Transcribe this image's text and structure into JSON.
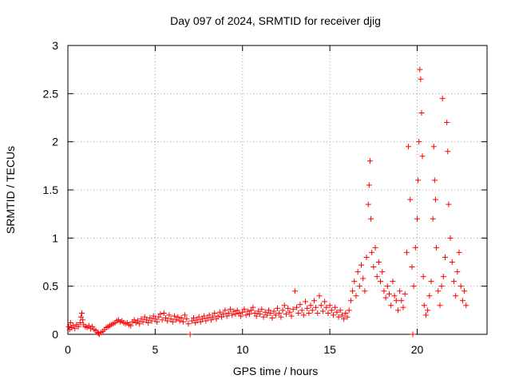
{
  "chart_data": {
    "type": "scatter",
    "title": "Day 097 of 2024, SRMTID for receiver djig",
    "xlabel": "GPS time / hours",
    "ylabel": "SRMTID / TECUs",
    "xlim": [
      0,
      24
    ],
    "ylim": [
      0,
      3
    ],
    "x_ticks": [
      0,
      5,
      10,
      15,
      20
    ],
    "y_ticks": [
      0,
      0.5,
      1,
      1.5,
      2,
      2.5,
      3
    ],
    "x_tick_labels": [
      "0",
      "5",
      "10",
      "15",
      "20"
    ],
    "y_tick_labels": [
      "0",
      "0.5",
      "1",
      "1.5",
      "2",
      "2.5",
      "3"
    ],
    "grid": true,
    "marker": "+",
    "color": "#ff0000",
    "series": [
      {
        "name": "SRMTID",
        "points": [
          [
            0.05,
            0.08
          ],
          [
            0.1,
            0.05
          ],
          [
            0.15,
            0.12
          ],
          [
            0.2,
            0.07
          ],
          [
            0.3,
            0.09
          ],
          [
            0.4,
            0.06
          ],
          [
            0.5,
            0.1
          ],
          [
            0.6,
            0.08
          ],
          [
            0.7,
            0.12
          ],
          [
            0.75,
            0.18
          ],
          [
            0.8,
            0.22
          ],
          [
            0.85,
            0.15
          ],
          [
            0.9,
            0.1
          ],
          [
            1.0,
            0.08
          ],
          [
            1.1,
            0.07
          ],
          [
            1.2,
            0.09
          ],
          [
            1.3,
            0.06
          ],
          [
            1.4,
            0.08
          ],
          [
            1.5,
            0.05
          ],
          [
            1.6,
            0.04
          ],
          [
            1.7,
            0.02
          ],
          [
            1.75,
            0.01
          ],
          [
            1.8,
            0.0
          ],
          [
            1.9,
            0.02
          ],
          [
            2.0,
            0.03
          ],
          [
            2.1,
            0.05
          ],
          [
            2.2,
            0.07
          ],
          [
            2.3,
            0.08
          ],
          [
            2.4,
            0.09
          ],
          [
            2.5,
            0.1
          ],
          [
            2.6,
            0.11
          ],
          [
            2.7,
            0.12
          ],
          [
            2.8,
            0.14
          ],
          [
            2.9,
            0.15
          ],
          [
            3.0,
            0.13
          ],
          [
            3.1,
            0.14
          ],
          [
            3.2,
            0.12
          ],
          [
            3.3,
            0.11
          ],
          [
            3.4,
            0.12
          ],
          [
            3.5,
            0.1
          ],
          [
            3.6,
            0.09
          ],
          [
            3.7,
            0.13
          ],
          [
            3.8,
            0.15
          ],
          [
            3.9,
            0.12
          ],
          [
            4.0,
            0.14
          ],
          [
            4.1,
            0.11
          ],
          [
            4.2,
            0.16
          ],
          [
            4.3,
            0.13
          ],
          [
            4.4,
            0.18
          ],
          [
            4.5,
            0.15
          ],
          [
            4.6,
            0.12
          ],
          [
            4.7,
            0.17
          ],
          [
            4.8,
            0.14
          ],
          [
            4.9,
            0.19
          ],
          [
            5.0,
            0.16
          ],
          [
            5.1,
            0.13
          ],
          [
            5.2,
            0.18
          ],
          [
            5.3,
            0.21
          ],
          [
            5.4,
            0.15
          ],
          [
            5.5,
            0.22
          ],
          [
            5.6,
            0.17
          ],
          [
            5.7,
            0.14
          ],
          [
            5.8,
            0.2
          ],
          [
            5.9,
            0.16
          ],
          [
            6.0,
            0.13
          ],
          [
            6.1,
            0.19
          ],
          [
            6.2,
            0.15
          ],
          [
            6.3,
            0.18
          ],
          [
            6.4,
            0.14
          ],
          [
            6.5,
            0.17
          ],
          [
            6.6,
            0.13
          ],
          [
            6.7,
            0.2
          ],
          [
            6.8,
            0.16
          ],
          [
            6.9,
            0.11
          ],
          [
            7.0,
            0.0
          ],
          [
            7.1,
            0.14
          ],
          [
            7.2,
            0.17
          ],
          [
            7.3,
            0.12
          ],
          [
            7.4,
            0.15
          ],
          [
            7.5,
            0.18
          ],
          [
            7.6,
            0.13
          ],
          [
            7.7,
            0.16
          ],
          [
            7.8,
            0.19
          ],
          [
            7.9,
            0.14
          ],
          [
            8.0,
            0.17
          ],
          [
            8.1,
            0.2
          ],
          [
            8.2,
            0.15
          ],
          [
            8.3,
            0.18
          ],
          [
            8.4,
            0.22
          ],
          [
            8.5,
            0.16
          ],
          [
            8.6,
            0.19
          ],
          [
            8.7,
            0.23
          ],
          [
            8.8,
            0.18
          ],
          [
            8.9,
            0.21
          ],
          [
            9.0,
            0.25
          ],
          [
            9.1,
            0.19
          ],
          [
            9.2,
            0.22
          ],
          [
            9.3,
            0.26
          ],
          [
            9.4,
            0.2
          ],
          [
            9.5,
            0.24
          ],
          [
            9.6,
            0.21
          ],
          [
            9.7,
            0.25
          ],
          [
            9.8,
            0.22
          ],
          [
            9.9,
            0.19
          ],
          [
            10.0,
            0.23
          ],
          [
            10.1,
            0.26
          ],
          [
            10.2,
            0.2
          ],
          [
            10.3,
            0.24
          ],
          [
            10.4,
            0.21
          ],
          [
            10.5,
            0.25
          ],
          [
            10.6,
            0.28
          ],
          [
            10.7,
            0.22
          ],
          [
            10.8,
            0.19
          ],
          [
            10.9,
            0.24
          ],
          [
            11.0,
            0.21
          ],
          [
            11.1,
            0.26
          ],
          [
            11.2,
            0.18
          ],
          [
            11.3,
            0.23
          ],
          [
            11.4,
            0.2
          ],
          [
            11.5,
            0.25
          ],
          [
            11.6,
            0.22
          ],
          [
            11.7,
            0.17
          ],
          [
            11.8,
            0.24
          ],
          [
            11.9,
            0.2
          ],
          [
            12.0,
            0.27
          ],
          [
            12.1,
            0.22
          ],
          [
            12.2,
            0.18
          ],
          [
            12.3,
            0.25
          ],
          [
            12.4,
            0.3
          ],
          [
            12.5,
            0.21
          ],
          [
            12.6,
            0.27
          ],
          [
            12.7,
            0.23
          ],
          [
            12.8,
            0.19
          ],
          [
            12.9,
            0.26
          ],
          [
            13.0,
            0.45
          ],
          [
            13.1,
            0.28
          ],
          [
            13.2,
            0.22
          ],
          [
            13.3,
            0.31
          ],
          [
            13.4,
            0.25
          ],
          [
            13.5,
            0.2
          ],
          [
            13.6,
            0.34
          ],
          [
            13.7,
            0.27
          ],
          [
            13.8,
            0.22
          ],
          [
            13.9,
            0.3
          ],
          [
            14.0,
            0.25
          ],
          [
            14.1,
            0.35
          ],
          [
            14.2,
            0.28
          ],
          [
            14.3,
            0.22
          ],
          [
            14.4,
            0.4
          ],
          [
            14.5,
            0.3
          ],
          [
            14.6,
            0.24
          ],
          [
            14.7,
            0.34
          ],
          [
            14.8,
            0.28
          ],
          [
            14.9,
            0.22
          ],
          [
            15.0,
            0.3
          ],
          [
            15.1,
            0.25
          ],
          [
            15.2,
            0.2
          ],
          [
            15.3,
            0.28
          ],
          [
            15.4,
            0.23
          ],
          [
            15.5,
            0.18
          ],
          [
            15.6,
            0.25
          ],
          [
            15.7,
            0.2
          ],
          [
            15.8,
            0.16
          ],
          [
            15.9,
            0.22
          ],
          [
            16.0,
            0.18
          ],
          [
            16.1,
            0.25
          ],
          [
            16.2,
            0.35
          ],
          [
            16.3,
            0.45
          ],
          [
            16.4,
            0.55
          ],
          [
            16.5,
            0.4
          ],
          [
            16.6,
            0.65
          ],
          [
            16.7,
            0.5
          ],
          [
            16.8,
            0.72
          ],
          [
            16.9,
            0.58
          ],
          [
            17.0,
            0.45
          ],
          [
            17.1,
            0.8
          ],
          [
            17.2,
            1.35
          ],
          [
            17.25,
            1.55
          ],
          [
            17.3,
            1.8
          ],
          [
            17.35,
            1.2
          ],
          [
            17.4,
            0.85
          ],
          [
            17.5,
            0.7
          ],
          [
            17.6,
            0.9
          ],
          [
            17.7,
            0.6
          ],
          [
            17.8,
            0.75
          ],
          [
            17.9,
            0.55
          ],
          [
            18.0,
            0.65
          ],
          [
            18.1,
            0.45
          ],
          [
            18.2,
            0.38
          ],
          [
            18.3,
            0.5
          ],
          [
            18.4,
            0.42
          ],
          [
            18.5,
            0.3
          ],
          [
            18.6,
            0.55
          ],
          [
            18.7,
            0.4
          ],
          [
            18.8,
            0.35
          ],
          [
            18.9,
            0.25
          ],
          [
            19.0,
            0.45
          ],
          [
            19.1,
            0.35
          ],
          [
            19.2,
            0.28
          ],
          [
            19.3,
            0.42
          ],
          [
            19.4,
            0.85
          ],
          [
            19.5,
            1.95
          ],
          [
            19.6,
            1.4
          ],
          [
            19.7,
            0.7
          ],
          [
            19.75,
            0.0
          ],
          [
            19.8,
            0.5
          ],
          [
            19.9,
            0.9
          ],
          [
            20.0,
            1.2
          ],
          [
            20.05,
            1.6
          ],
          [
            20.1,
            2.0
          ],
          [
            20.15,
            2.75
          ],
          [
            20.2,
            2.65
          ],
          [
            20.25,
            2.3
          ],
          [
            20.3,
            1.85
          ],
          [
            20.35,
            0.6
          ],
          [
            20.4,
            0.3
          ],
          [
            20.5,
            0.2
          ],
          [
            20.6,
            0.25
          ],
          [
            20.7,
            0.4
          ],
          [
            20.8,
            0.55
          ],
          [
            20.9,
            1.2
          ],
          [
            20.95,
            1.95
          ],
          [
            21.0,
            1.6
          ],
          [
            21.05,
            1.4
          ],
          [
            21.1,
            0.9
          ],
          [
            21.2,
            0.45
          ],
          [
            21.3,
            0.3
          ],
          [
            21.4,
            0.5
          ],
          [
            21.45,
            2.45
          ],
          [
            21.5,
            0.6
          ],
          [
            21.6,
            0.8
          ],
          [
            21.7,
            2.2
          ],
          [
            21.75,
            1.9
          ],
          [
            21.8,
            1.35
          ],
          [
            21.9,
            1.0
          ],
          [
            22.0,
            0.75
          ],
          [
            22.1,
            0.55
          ],
          [
            22.2,
            0.4
          ],
          [
            22.3,
            0.65
          ],
          [
            22.4,
            0.85
          ],
          [
            22.5,
            0.5
          ],
          [
            22.6,
            0.35
          ],
          [
            22.7,
            0.45
          ],
          [
            22.8,
            0.3
          ]
        ]
      }
    ]
  }
}
